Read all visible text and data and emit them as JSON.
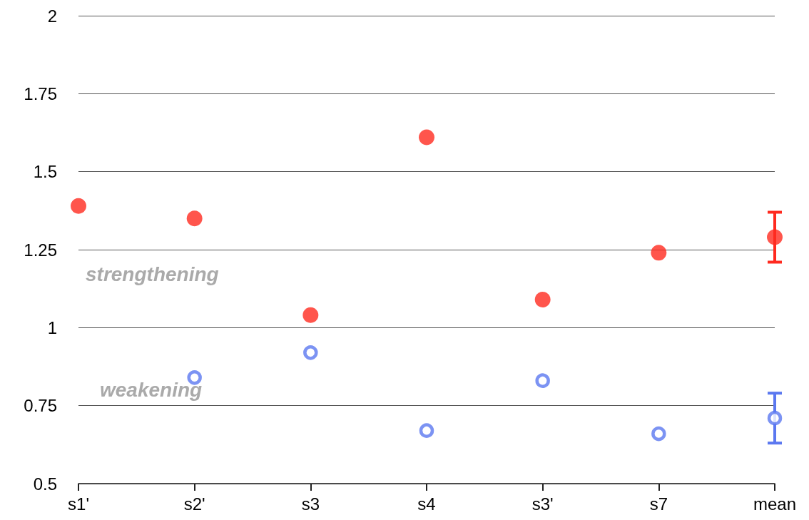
{
  "chart_data": {
    "type": "scatter",
    "categories": [
      "s1'",
      "s2'",
      "s3",
      "s4",
      "s3'",
      "s7",
      "mean"
    ],
    "series": [
      {
        "color": "#ff2a1f",
        "values": [
          1.39,
          1.35,
          1.04,
          1.61,
          1.09,
          1.24,
          1.29
        ],
        "errors": [
          null,
          null,
          null,
          null,
          null,
          null,
          0.08
        ]
      },
      {
        "color": "#5b78f0",
        "values": [
          null,
          0.84,
          0.92,
          0.67,
          0.83,
          0.66,
          0.71
        ],
        "errors": [
          null,
          null,
          null,
          null,
          null,
          null,
          0.08
        ]
      }
    ],
    "ylim": [
      0.5,
      2
    ],
    "yticks": [
      0.5,
      0.75,
      1,
      1.25,
      1.5,
      1.75,
      2
    ],
    "grid": "y",
    "marker": "circle",
    "annotations": [
      "strengthening",
      "weakening"
    ]
  }
}
